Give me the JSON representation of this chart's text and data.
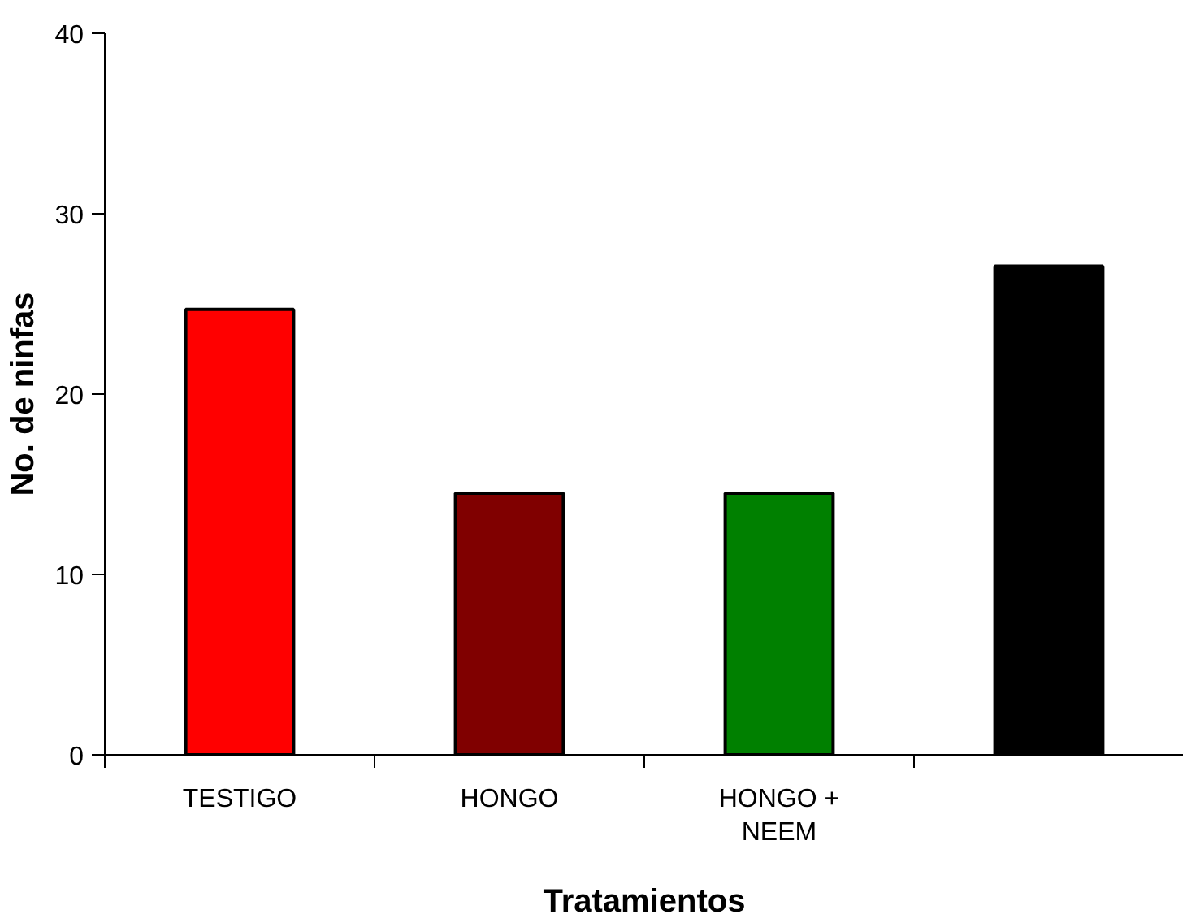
{
  "chart_data": {
    "type": "bar",
    "xlabel": "Tratamientos",
    "ylabel": "No. de ninfas",
    "categories": [
      "TESTIGO",
      "HONGO",
      "HONGO +\nNEEM",
      null
    ],
    "values": [
      24.7,
      14.5,
      14.5,
      27.1
    ],
    "colors": [
      "#ff0000",
      "#800000",
      "#008000",
      "#000000"
    ],
    "ylim": [
      0,
      40
    ],
    "yticks": [
      0,
      10,
      20,
      30,
      40
    ],
    "grid": false
  }
}
